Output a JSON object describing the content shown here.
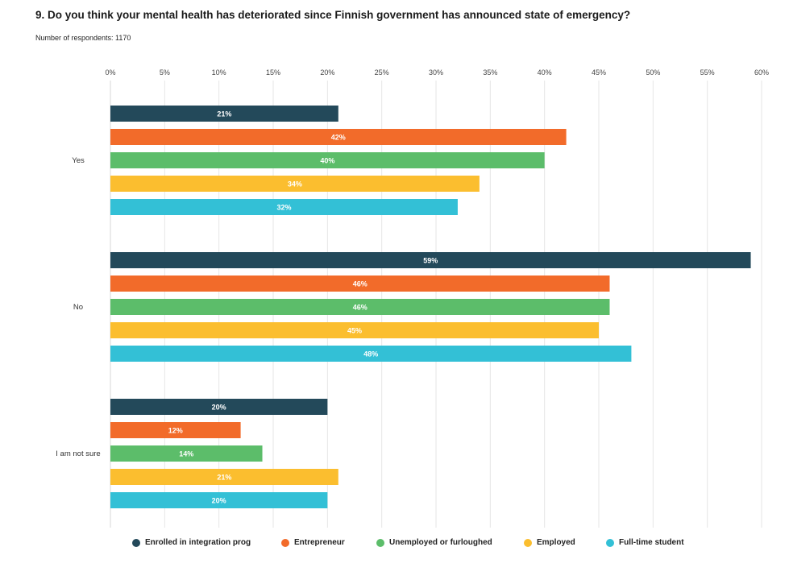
{
  "header": {
    "title": "9. Do you think your mental health has deteriorated since Finnish government has announced state of emergency?",
    "respondents": "Number of respondents: 1170"
  },
  "chart_data": {
    "type": "bar",
    "orientation": "horizontal",
    "title": "9. Do you think your mental health has deteriorated since Finnish government has announced state of emergency?",
    "xlabel": "",
    "ylabel": "",
    "xlim": [
      0,
      60
    ],
    "x_ticks": [
      0,
      5,
      10,
      15,
      20,
      25,
      30,
      35,
      40,
      45,
      50,
      55,
      60
    ],
    "tick_suffix": "%",
    "grid": true,
    "legend_position": "bottom",
    "categories": [
      "Yes",
      "No",
      "I am not sure"
    ],
    "series": [
      {
        "name": "Enrolled in integration prog",
        "color": "#23495a",
        "values": [
          21,
          59,
          20
        ]
      },
      {
        "name": "Entrepreneur",
        "color": "#f26b2a",
        "values": [
          42,
          46,
          12
        ]
      },
      {
        "name": "Unemployed or furloughed",
        "color": "#5cbd6a",
        "values": [
          40,
          46,
          14
        ]
      },
      {
        "name": "Employed",
        "color": "#fbbe2f",
        "values": [
          34,
          45,
          21
        ]
      },
      {
        "name": "Full-time student",
        "color": "#33c0d6",
        "values": [
          32,
          48,
          20
        ]
      }
    ]
  }
}
